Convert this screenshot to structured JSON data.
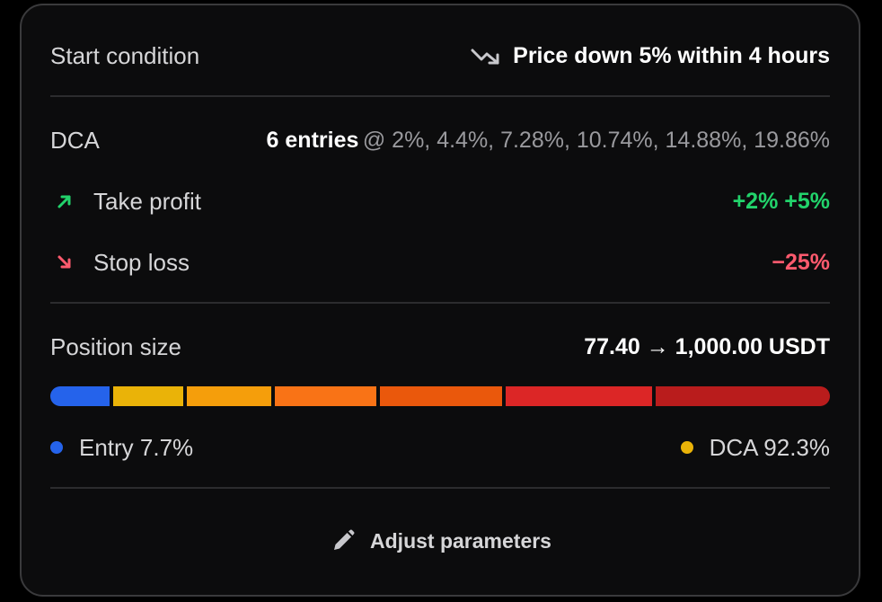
{
  "start": {
    "label": "Start condition",
    "icon": "trending-down-icon",
    "value": "Price down 5% within 4 hours"
  },
  "dca": {
    "label": "DCA",
    "entries": "6 entries",
    "levels": "@ 2%, 4.4%, 7.28%, 10.74%, 14.88%, 19.86%"
  },
  "take_profit": {
    "label": "Take profit",
    "icon": "arrow-up-right-icon",
    "value": "+2% +5%",
    "color": "#22d36b"
  },
  "stop_loss": {
    "label": "Stop loss",
    "icon": "arrow-down-right-icon",
    "value": "−25%",
    "color": "#ff5a6e"
  },
  "position": {
    "label": "Position size",
    "value": "77.40 → 1,000.00 USDT",
    "segments": [
      {
        "name": "Entry",
        "percent": 7.7,
        "color": "#2563eb"
      },
      {
        "name": "DCA 1",
        "percent": 9.2,
        "color": "#eab308"
      },
      {
        "name": "DCA 2",
        "percent": 11.0,
        "color": "#f59e0b"
      },
      {
        "name": "DCA 3",
        "percent": 13.3,
        "color": "#f97316"
      },
      {
        "name": "DCA 4",
        "percent": 15.9,
        "color": "#ea580c"
      },
      {
        "name": "DCA 5",
        "percent": 19.1,
        "color": "#dc2626"
      },
      {
        "name": "DCA 6",
        "percent": 22.8,
        "color": "#b91c1c"
      }
    ],
    "legend_entry": "Entry 7.7%",
    "legend_entry_color": "#2563eb",
    "legend_dca": "DCA 92.3%",
    "legend_dca_color": "#eab308"
  },
  "actions": {
    "adjust_label": "Adjust parameters",
    "adjust_icon": "pencil-icon"
  }
}
